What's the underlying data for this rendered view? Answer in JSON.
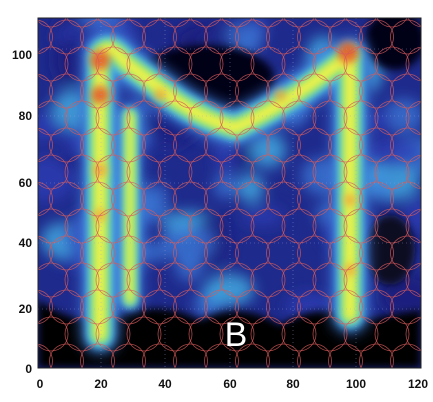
{
  "figure": {
    "panel_label": "B",
    "x_ticks": [
      "0",
      "20",
      "40",
      "60",
      "80",
      "100",
      "120"
    ],
    "y_ticks": [
      "0",
      "20",
      "40",
      "60",
      "80",
      "100"
    ],
    "heatmap_shape": "M",
    "colormap": [
      "#000000",
      "#1a1a7a",
      "#2f3fb6",
      "#3f7bd9",
      "#45b9ea",
      "#7fe27a",
      "#f1f24a",
      "#f0a23a",
      "#e4542c"
    ],
    "grid_circle_color": "#d85a5a"
  }
}
